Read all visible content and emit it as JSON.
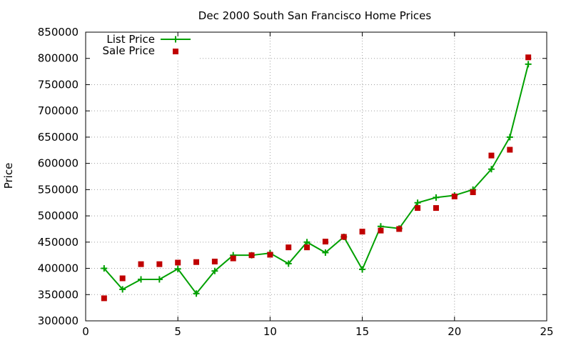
{
  "chart_data": {
    "type": "line",
    "title": "Dec 2000 South San Francisco Home Prices",
    "xlabel": "",
    "ylabel": "Price",
    "xlim": [
      0,
      25
    ],
    "ylim": [
      300000,
      850000
    ],
    "xticks": [
      0,
      5,
      10,
      15,
      20,
      25
    ],
    "yticks": [
      300000,
      350000,
      400000,
      450000,
      500000,
      550000,
      600000,
      650000,
      700000,
      750000,
      800000,
      850000
    ],
    "grid": true,
    "legend": "top-left",
    "series": [
      {
        "name": "List Price",
        "style": "lines+points",
        "color": "#00a000",
        "x": [
          1,
          2,
          3,
          4,
          5,
          6,
          7,
          8,
          9,
          10,
          11,
          12,
          13,
          14,
          15,
          16,
          17,
          18,
          19,
          20,
          21,
          22,
          23,
          24
        ],
        "y": [
          400000,
          360000,
          379000,
          379000,
          399000,
          352000,
          395000,
          425000,
          425000,
          429000,
          409000,
          450000,
          430000,
          460000,
          398000,
          480000,
          476000,
          525000,
          535000,
          539000,
          550000,
          589000,
          650000,
          789000
        ]
      },
      {
        "name": "Sale Price",
        "style": "points",
        "color": "#c00000",
        "x": [
          1,
          2,
          3,
          4,
          5,
          6,
          7,
          8,
          9,
          10,
          11,
          12,
          13,
          14,
          15,
          16,
          17,
          18,
          19,
          20,
          21,
          22,
          23,
          24
        ],
        "y": [
          343000,
          381000,
          408000,
          408000,
          411000,
          412000,
          413000,
          419000,
          425000,
          426000,
          440000,
          440000,
          451000,
          460000,
          470000,
          472000,
          475000,
          515000,
          515000,
          537000,
          545000,
          615000,
          626000,
          802000
        ]
      }
    ]
  }
}
